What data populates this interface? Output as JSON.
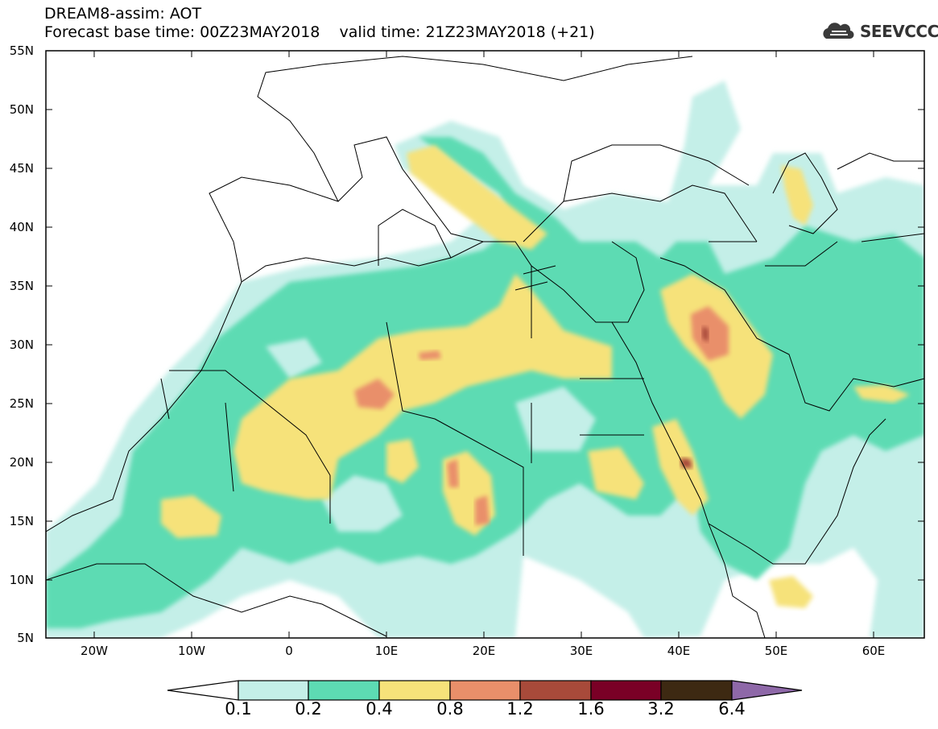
{
  "header": {
    "line1": "DREAM8-assim: AOT",
    "line2": "Forecast base time: 00Z23MAY2018    valid time: 21Z23MAY2018 (+21)"
  },
  "logo": {
    "text": "SEEVCCC",
    "icon": "cloud-logo-icon"
  },
  "map": {
    "variable": "AOT",
    "lat_range": [
      5,
      55
    ],
    "lon_range": [
      -25,
      65
    ],
    "lat_labels": [
      "55N",
      "50N",
      "45N",
      "40N",
      "35N",
      "30N",
      "25N",
      "20N",
      "15N",
      "10N",
      "5N"
    ],
    "lon_labels": [
      "20W",
      "10W",
      "0",
      "10E",
      "20E",
      "30E",
      "40E",
      "50E",
      "60E"
    ]
  },
  "colorbar": {
    "labels": [
      "0.1",
      "0.2",
      "0.4",
      "0.8",
      "1.2",
      "1.6",
      "3.2",
      "6.4"
    ],
    "colors": [
      "#ffffff",
      "#c4efe8",
      "#5ddbb3",
      "#f6e27a",
      "#e98f6a",
      "#a84a3a",
      "#7a0026",
      "#3d2912",
      "#8e68a8"
    ]
  }
}
